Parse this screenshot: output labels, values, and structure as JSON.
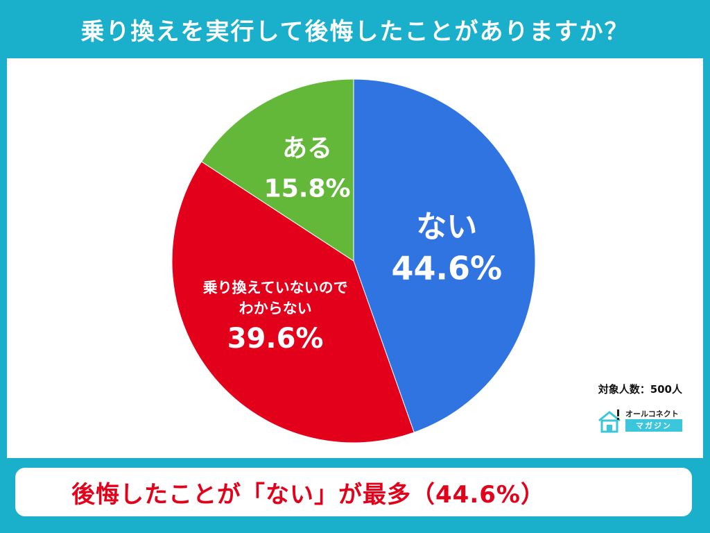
{
  "title": "乗り換えを実行して後悔したことがありますか？",
  "sample_label": "対象人数：500人",
  "logo": {
    "top_text": "オールコネクト",
    "bottom_text": "マガジン"
  },
  "conclusion": "後悔したことが「ない」が最多（44.6%）",
  "colors": {
    "background": "#1ab0cc",
    "ない": "#2f74e0",
    "わからない": "#e3001b",
    "ある": "#63b83a",
    "conclusion_text": "#e3001b"
  },
  "chart_data": {
    "type": "pie",
    "title": "乗り換えを実行して後悔したことがありますか？",
    "slices": [
      {
        "label_lines": [
          "ない"
        ],
        "value": 44.6,
        "value_label": "44.6%",
        "color": "#2f74e0"
      },
      {
        "label_lines": [
          "乗り換えていないので",
          "わからない"
        ],
        "value": 39.6,
        "value_label": "39.6%",
        "color": "#e3001b"
      },
      {
        "label_lines": [
          "ある"
        ],
        "value": 15.8,
        "value_label": "15.8%",
        "color": "#63b83a"
      }
    ],
    "start": "12 o'clock",
    "direction": "clockwise"
  }
}
